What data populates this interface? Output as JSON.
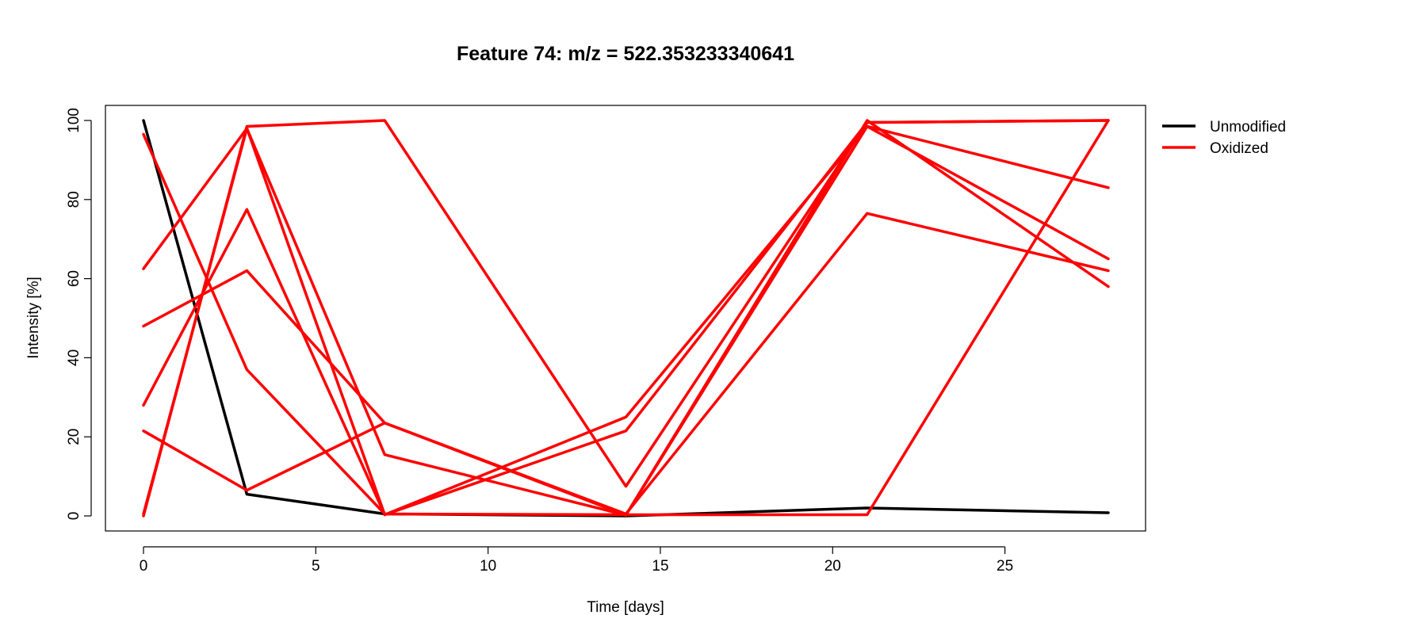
{
  "chart_data": {
    "type": "line",
    "title": "Feature 74: m/z = 522.353233340641",
    "xlabel": "Time [days]",
    "ylabel": "Intensity [%]",
    "xlim": [
      0,
      28
    ],
    "ylim": [
      0,
      100
    ],
    "xticks": [
      0,
      5,
      10,
      15,
      20,
      25
    ],
    "yticks": [
      0,
      20,
      40,
      60,
      80,
      100
    ],
    "x": [
      0,
      3,
      7,
      14,
      21,
      28
    ],
    "grid": false,
    "legend_position": "right",
    "legend": [
      {
        "label": "Unmodified",
        "color": "#000000"
      },
      {
        "label": "Oxidized",
        "color": "#ff0000"
      }
    ],
    "series": [
      {
        "group": "Unmodified",
        "color": "#000000",
        "values": [
          100,
          5.5,
          0.5,
          0,
          2,
          0.8
        ]
      },
      {
        "group": "Oxidized",
        "color": "#ff0000",
        "values": [
          0,
          98.5,
          100,
          7.5,
          99.5,
          100
        ]
      },
      {
        "group": "Oxidized",
        "color": "#ff0000",
        "values": [
          96.5,
          37,
          0.5,
          0.3,
          0.3,
          100
        ]
      },
      {
        "group": "Oxidized",
        "color": "#ff0000",
        "values": [
          62.5,
          98,
          15.5,
          0.2,
          98.5,
          65
        ]
      },
      {
        "group": "Oxidized",
        "color": "#ff0000",
        "values": [
          48,
          62,
          23.5,
          0.2,
          100,
          58
        ]
      },
      {
        "group": "Oxidized",
        "color": "#ff0000",
        "values": [
          28,
          77.5,
          0.3,
          25,
          98.5,
          83
        ]
      },
      {
        "group": "Oxidized",
        "color": "#ff0000",
        "values": [
          21.5,
          6.5,
          23.5,
          0.5,
          76.5,
          62
        ]
      },
      {
        "group": "Oxidized",
        "color": "#ff0000",
        "values": [
          0.5,
          98,
          0.3,
          21.5,
          99.5,
          100
        ]
      }
    ]
  }
}
